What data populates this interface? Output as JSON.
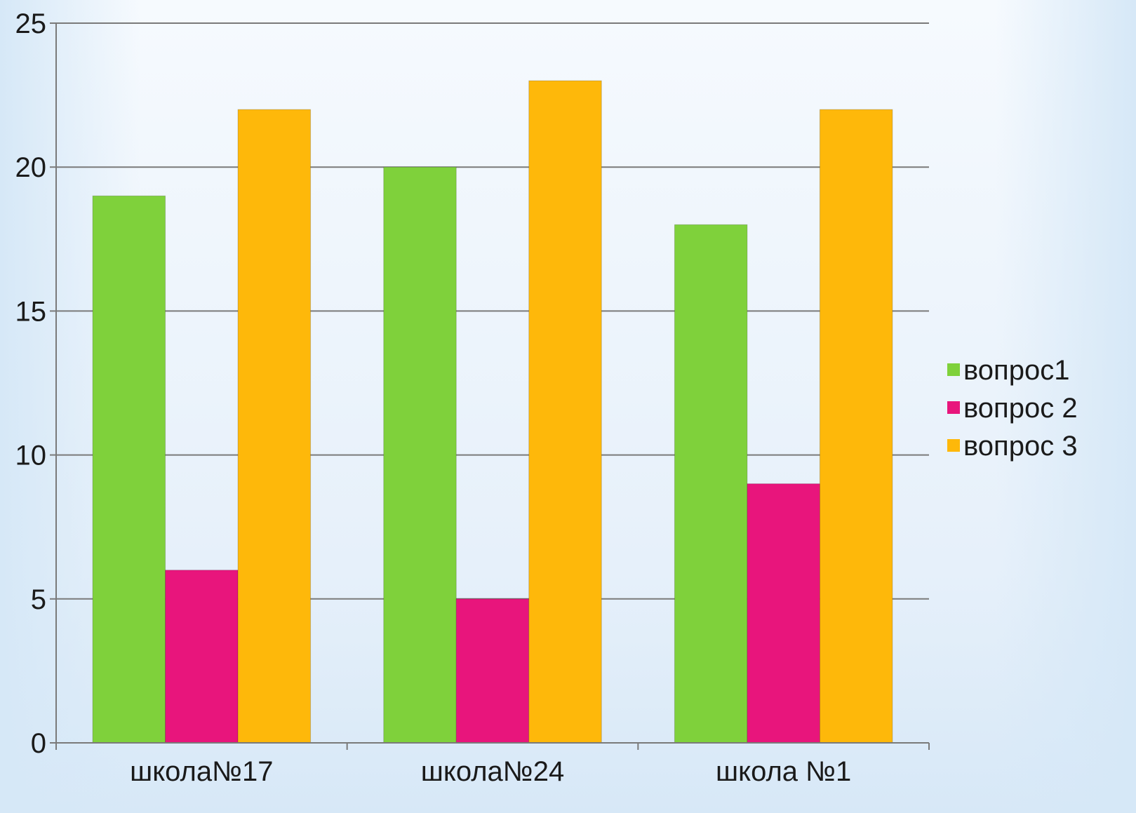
{
  "chart_data": {
    "type": "bar",
    "title": "",
    "xlabel": "",
    "ylabel": "",
    "categories": [
      "школа№17",
      "школа№24",
      "школа №1"
    ],
    "series": [
      {
        "name": "вопрос1",
        "color": "#7fd13b",
        "values": [
          19,
          20,
          18
        ]
      },
      {
        "name": "вопрос 2",
        "color": "#e8157c",
        "values": [
          6,
          5,
          9
        ]
      },
      {
        "name": "вопрос 3",
        "color": "#feb80a",
        "values": [
          22,
          23,
          22
        ]
      }
    ],
    "ylim": [
      0,
      25
    ],
    "yticks": [
      "0",
      "5",
      "10",
      "15",
      "20",
      "25"
    ],
    "grid": true,
    "legend_position": "right"
  }
}
